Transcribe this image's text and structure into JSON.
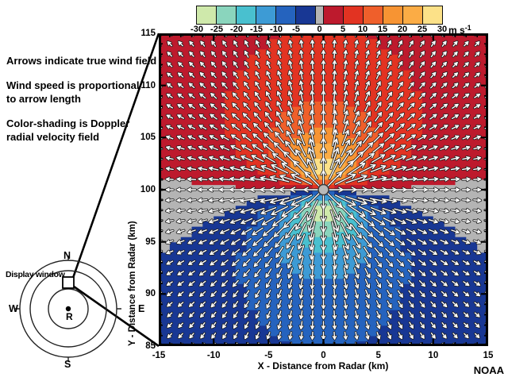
{
  "credit": "NOAA",
  "annotations": {
    "notes": [
      "Arrows indicate true wind field",
      "Wind speed is proportional\nto arrow length",
      "Color-shading is Doppler\nradial velocity field"
    ]
  },
  "inset": {
    "label": "Display window",
    "radar_label": "R",
    "compass": {
      "n": "N",
      "e": "E",
      "s": "S",
      "w": "W"
    }
  },
  "chart_data": {
    "type": "heatmap",
    "description": "Simulated Doppler radial velocity field and true wind vectors for a divergent outflow (microburst) centered 100 km north of the radar",
    "axes": {
      "xlabel": "X - Distance from Radar (km)",
      "ylabel": "Y - Distance from Radar (km)",
      "xlim": [
        -15,
        15
      ],
      "ylim": [
        85,
        115
      ],
      "x_major_ticks": [
        -15,
        -10,
        -5,
        0,
        5,
        10,
        15
      ],
      "y_major_ticks": [
        85,
        90,
        95,
        100,
        105,
        110,
        115
      ],
      "minor_tick_step": 1
    },
    "colorbar": {
      "ticks": [
        -30,
        -25,
        -20,
        -15,
        -10,
        -5,
        0,
        5,
        10,
        15,
        20,
        25,
        30
      ],
      "unit_base": "m s",
      "unit_exponent": "-1",
      "segment_colors": [
        "#cfe9ab",
        "#8ad5bd",
        "#49c0cf",
        "#3d9bd5",
        "#2563be",
        "#183794",
        "#bd1a2d",
        "#e23322",
        "#ef5f2b",
        "#f79433",
        "#fbac45",
        "#fce188"
      ],
      "zero_color": "#b4b4b4"
    },
    "field_model": {
      "pattern": "divergent-outflow",
      "outflow_center_km": [
        0,
        100
      ],
      "radar_position_km": [
        0,
        0
      ],
      "peak_speed_ms": 27,
      "peak_radius_km": 2.5,
      "decay_exponent": 2.3,
      "zero_display_threshold_ms": 1.2
    },
    "grid": {
      "cell_km_x": 1,
      "cell_km_y": 0.5,
      "arrow_spacing_km": 1
    },
    "arrows": {
      "fill": "#ffffff",
      "outline": "#1a1a1a"
    },
    "marker": {
      "position_km": [
        0,
        100
      ],
      "color": "#b9b9b9",
      "outline": "#3a3a3a"
    }
  }
}
